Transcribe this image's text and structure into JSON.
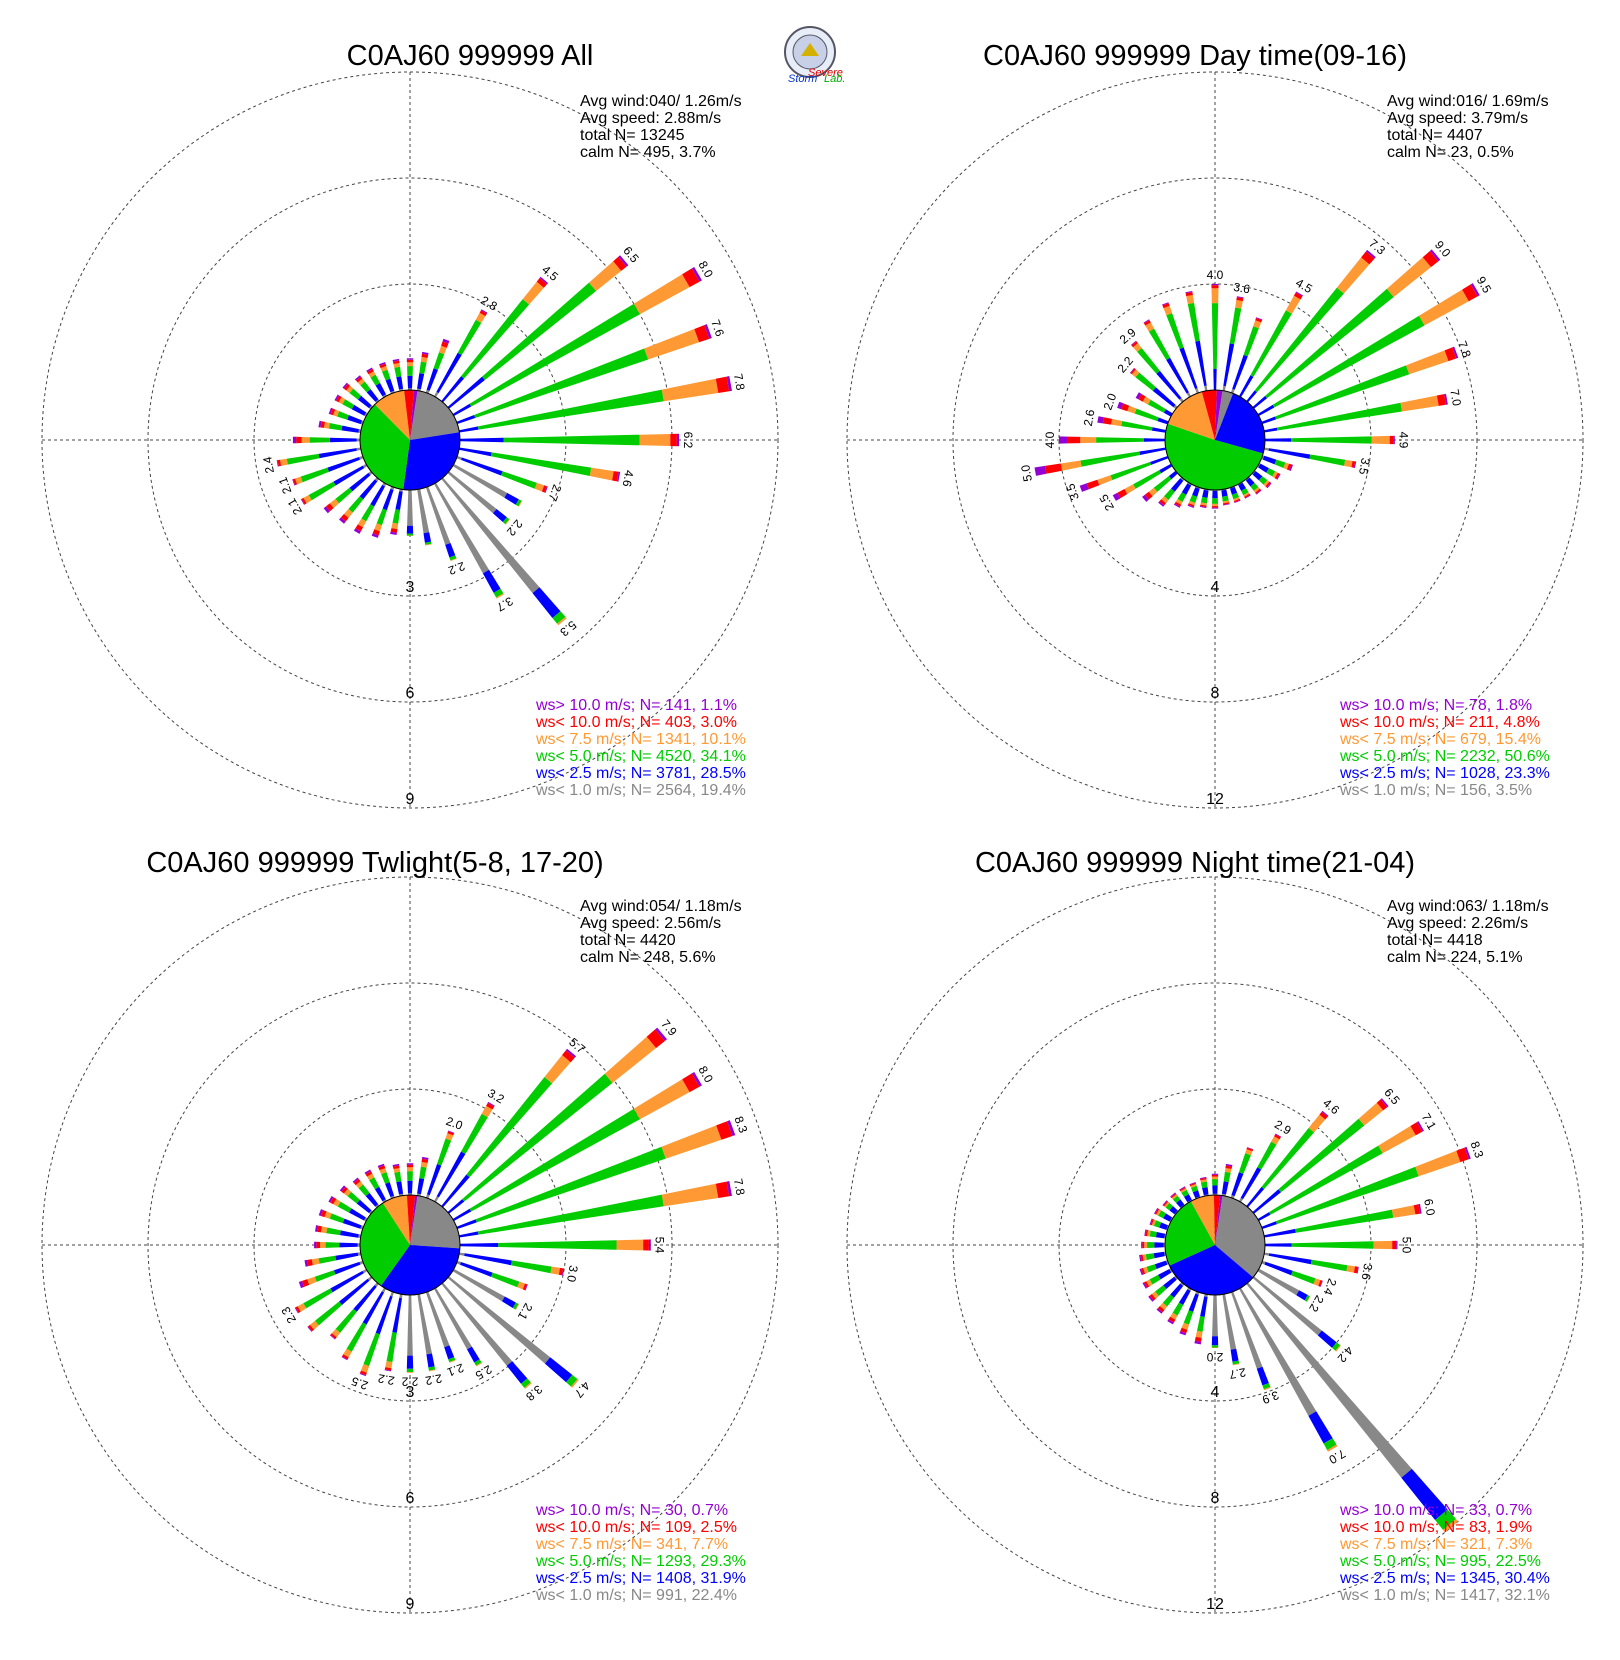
{
  "logo": {
    "text_severe": "Severe",
    "text_storm": "Storm",
    "text_lab": "Lab."
  },
  "colors": {
    "gt10": "#9400d3",
    "lt10": "#ff0000",
    "lt75": "#ff9933",
    "lt5": "#00cc00",
    "lt25": "#0000ff",
    "lt1": "#888888"
  },
  "panels": [
    {
      "title": "C0AJ60 999999 All",
      "stats": [
        "Avg wind:040/ 1.26m/s",
        "Avg speed: 2.88m/s",
        "total N=       13245",
        "calm N=    495,   3.7%"
      ],
      "rings": [
        "3",
        "6",
        "9"
      ],
      "legend": [
        {
          "text": "ws> 10.0 m/s; N=   141,  1.1%",
          "color": "gt10"
        },
        {
          "text": "ws< 10.0 m/s; N=   403,  3.0%",
          "color": "lt10"
        },
        {
          "text": "ws<  7.5 m/s; N=  1341, 10.1%",
          "color": "lt75"
        },
        {
          "text": "ws<  5.0 m/s; N=  4520, 34.1%",
          "color": "lt5"
        },
        {
          "text": "ws<  2.5 m/s; N=  3781, 28.5%",
          "color": "lt25"
        },
        {
          "text": "ws<  1.0 m/s; N=  2564, 19.4%",
          "color": "lt1"
        }
      ],
      "pie": [
        0.194,
        0.285,
        0.341,
        0.101,
        0.03,
        0.011
      ]
    },
    {
      "title": "C0AJ60 999999 Day time(09-16)",
      "stats": [
        "Avg wind:016/ 1.69m/s",
        "Avg speed: 3.79m/s",
        "total N=       4407",
        "calm N=     23,   0.5%"
      ],
      "rings": [
        "4",
        "8",
        "12"
      ],
      "legend": [
        {
          "text": "ws> 10.0 m/s; N=    78,  1.8%",
          "color": "gt10"
        },
        {
          "text": "ws< 10.0 m/s; N=   211,  4.8%",
          "color": "lt10"
        },
        {
          "text": "ws<  7.5 m/s; N=   679, 15.4%",
          "color": "lt75"
        },
        {
          "text": "ws<  5.0 m/s; N=  2232, 50.6%",
          "color": "lt5"
        },
        {
          "text": "ws<  2.5 m/s; N=  1028, 23.3%",
          "color": "lt25"
        },
        {
          "text": "ws<  1.0 m/s; N=   156,  3.5%",
          "color": "lt1"
        }
      ],
      "pie": [
        0.035,
        0.233,
        0.506,
        0.154,
        0.048,
        0.018
      ]
    },
    {
      "title": "C0AJ60 999999 Twlight(5-8, 17-20)",
      "stats": [
        "Avg wind:054/ 1.18m/s",
        "Avg speed: 2.56m/s",
        "total N=       4420",
        "calm N=    248,   5.6%"
      ],
      "rings": [
        "3",
        "6",
        "9"
      ],
      "legend": [
        {
          "text": "ws> 10.0 m/s; N=    30,  0.7%",
          "color": "gt10"
        },
        {
          "text": "ws< 10.0 m/s; N=   109,  2.5%",
          "color": "lt10"
        },
        {
          "text": "ws<  7.5 m/s; N=   341,  7.7%",
          "color": "lt75"
        },
        {
          "text": "ws<  5.0 m/s; N=  1293, 29.3%",
          "color": "lt5"
        },
        {
          "text": "ws<  2.5 m/s; N=  1408, 31.9%",
          "color": "lt25"
        },
        {
          "text": "ws<  1.0 m/s; N=   991, 22.4%",
          "color": "lt1"
        }
      ],
      "pie": [
        0.224,
        0.319,
        0.293,
        0.077,
        0.025,
        0.007
      ]
    },
    {
      "title": "C0AJ60 999999 Night time(21-04)",
      "stats": [
        "Avg wind:063/ 1.18m/s",
        "Avg speed: 2.26m/s",
        "total N=       4418",
        "calm N=    224,   5.1%"
      ],
      "rings": [
        "4",
        "8",
        "12"
      ],
      "legend": [
        {
          "text": "ws> 10.0 m/s; N=    33,  0.7%",
          "color": "gt10"
        },
        {
          "text": "ws< 10.0 m/s; N=    83,  1.9%",
          "color": "lt10"
        },
        {
          "text": "ws<  7.5 m/s; N=   321,  7.3%",
          "color": "lt75"
        },
        {
          "text": "ws<  5.0 m/s; N=   995, 22.5%",
          "color": "lt5"
        },
        {
          "text": "ws<  2.5 m/s; N=  1345, 30.4%",
          "color": "lt25"
        },
        {
          "text": "ws<  1.0 m/s; N=  1417, 32.1%",
          "color": "lt1"
        }
      ],
      "pie": [
        0.321,
        0.304,
        0.225,
        0.073,
        0.019,
        0.007
      ]
    }
  ],
  "chart_data": [
    {
      "type": "windrose",
      "title": "C0AJ60 999999 All",
      "radial_unit": "%",
      "rings": [
        3,
        6,
        9
      ],
      "directions_deg": [
        0,
        10,
        20,
        30,
        40,
        50,
        60,
        70,
        80,
        90,
        100,
        110,
        120,
        130,
        140,
        150,
        160,
        170,
        180,
        190,
        200,
        210,
        220,
        230,
        240,
        250,
        260,
        270,
        280,
        290,
        300,
        310,
        320,
        330,
        340,
        350
      ],
      "totals": [
        0.9,
        1.1,
        1.6,
        2.8,
        4.5,
        6.5,
        8.0,
        7.6,
        7.8,
        6.2,
        4.6,
        2.7,
        2.2,
        2.2,
        5.3,
        3.7,
        2.2,
        1.6,
        1.3,
        1.3,
        1.5,
        1.6,
        1.6,
        1.7,
        2.1,
        2.1,
        2.4,
        1.9,
        1.2,
        1.0,
        1.0,
        1.0,
        0.9,
        0.9,
        0.9,
        0.9
      ],
      "labeled_values": [
        {
          "dir": 30,
          "value": 2.8
        },
        {
          "dir": 40,
          "value": 4.5
        },
        {
          "dir": 50,
          "value": 6.5
        },
        {
          "dir": 60,
          "value": 8.0
        },
        {
          "dir": 70,
          "value": 7.6
        },
        {
          "dir": 80,
          "value": 7.8
        },
        {
          "dir": 90,
          "value": 6.2
        },
        {
          "dir": 100,
          "value": 4.6
        },
        {
          "dir": 110,
          "value": 2.7
        },
        {
          "dir": 130,
          "value": 2.2
        },
        {
          "dir": 140,
          "value": 5.3
        },
        {
          "dir": 150,
          "value": 3.7
        },
        {
          "dir": 160,
          "value": 2.2
        },
        {
          "dir": 240,
          "value": 2.1
        },
        {
          "dir": 250,
          "value": 2.1
        },
        {
          "dir": 260,
          "value": 2.4
        }
      ]
    },
    {
      "type": "windrose",
      "title": "C0AJ60 999999 Day time(09-16)",
      "radial_unit": "%",
      "rings": [
        4,
        8,
        12
      ],
      "directions_deg": [
        0,
        10,
        20,
        30,
        40,
        50,
        60,
        70,
        80,
        90,
        100,
        110,
        120,
        130,
        140,
        150,
        160,
        170,
        180,
        190,
        200,
        210,
        220,
        230,
        240,
        250,
        260,
        270,
        280,
        290,
        300,
        310,
        320,
        330,
        340,
        350
      ],
      "totals": [
        4.0,
        3.6,
        3.0,
        4.5,
        7.3,
        9.0,
        9.5,
        7.8,
        7.0,
        4.9,
        3.5,
        1.2,
        0.9,
        0.8,
        0.7,
        0.6,
        0.6,
        0.6,
        0.7,
        0.7,
        0.8,
        1.0,
        1.3,
        1.6,
        2.5,
        3.5,
        5.0,
        4.0,
        2.6,
        2.0,
        1.5,
        2.2,
        2.9,
        3.3,
        3.6,
        3.8
      ],
      "labeled_values": [
        {
          "dir": 0,
          "value": 4.0
        },
        {
          "dir": 10,
          "value": 3.6
        },
        {
          "dir": 30,
          "value": 4.5
        },
        {
          "dir": 40,
          "value": 7.3
        },
        {
          "dir": 50,
          "value": 9.0
        },
        {
          "dir": 60,
          "value": 9.5
        },
        {
          "dir": 70,
          "value": 7.8
        },
        {
          "dir": 80,
          "value": 7.0
        },
        {
          "dir": 90,
          "value": 4.9
        },
        {
          "dir": 100,
          "value": 3.5
        },
        {
          "dir": 240,
          "value": 2.5
        },
        {
          "dir": 250,
          "value": 3.5
        },
        {
          "dir": 260,
          "value": 5.0
        },
        {
          "dir": 270,
          "value": 4.0
        },
        {
          "dir": 280,
          "value": 2.6
        },
        {
          "dir": 290,
          "value": 2.0
        },
        {
          "dir": 310,
          "value": 2.2
        },
        {
          "dir": 320,
          "value": 2.9
        }
      ]
    },
    {
      "type": "windrose",
      "title": "C0AJ60 999999 Twlight(5-8, 17-20)",
      "radial_unit": "%",
      "rings": [
        3,
        6,
        9
      ],
      "directions_deg": [
        0,
        10,
        20,
        30,
        40,
        50,
        60,
        70,
        80,
        90,
        100,
        110,
        120,
        130,
        140,
        150,
        160,
        170,
        180,
        190,
        200,
        210,
        220,
        230,
        240,
        250,
        260,
        270,
        280,
        290,
        300,
        310,
        320,
        330,
        340,
        350
      ],
      "totals": [
        0.9,
        1.1,
        2.0,
        3.2,
        5.7,
        7.9,
        8.0,
        8.3,
        7.8,
        5.4,
        3.0,
        2.1,
        2.1,
        4.7,
        3.8,
        2.5,
        2.1,
        2.2,
        2.2,
        2.2,
        2.5,
        2.3,
        2.0,
        2.3,
        2.3,
        1.9,
        1.6,
        1.3,
        1.3,
        1.3,
        1.2,
        1.1,
        1.0,
        1.0,
        1.0,
        0.9
      ],
      "labeled_values": [
        {
          "dir": 20,
          "value": 2.0
        },
        {
          "dir": 30,
          "value": 3.2
        },
        {
          "dir": 40,
          "value": 5.7
        },
        {
          "dir": 50,
          "value": 7.9
        },
        {
          "dir": 60,
          "value": 8.0
        },
        {
          "dir": 70,
          "value": 8.3
        },
        {
          "dir": 80,
          "value": 7.8
        },
        {
          "dir": 90,
          "value": 5.4
        },
        {
          "dir": 100,
          "value": 3.0
        },
        {
          "dir": 120,
          "value": 2.1
        },
        {
          "dir": 130,
          "value": 4.7
        },
        {
          "dir": 140,
          "value": 3.8
        },
        {
          "dir": 150,
          "value": 2.5
        },
        {
          "dir": 160,
          "value": 2.1
        },
        {
          "dir": 170,
          "value": 2.2
        },
        {
          "dir": 180,
          "value": 2.2
        },
        {
          "dir": 190,
          "value": 2.2
        },
        {
          "dir": 200,
          "value": 2.5
        },
        {
          "dir": 240,
          "value": 2.3
        }
      ]
    },
    {
      "type": "windrose",
      "title": "C0AJ60 999999 Night time(21-04)",
      "radial_unit": "%",
      "rings": [
        4,
        8,
        12
      ],
      "directions_deg": [
        0,
        10,
        20,
        30,
        40,
        50,
        60,
        70,
        80,
        90,
        100,
        110,
        120,
        130,
        140,
        150,
        160,
        170,
        180,
        190,
        200,
        210,
        220,
        230,
        240,
        250,
        260,
        270,
        280,
        290,
        300,
        310,
        320,
        330,
        340,
        350
      ],
      "totals": [
        0.8,
        1.2,
        2.0,
        2.9,
        4.6,
        6.5,
        7.1,
        8.3,
        6.0,
        5.0,
        3.6,
        2.4,
        2.2,
        4.2,
        12.0,
        7.0,
        3.9,
        2.7,
        2.0,
        1.9,
        1.7,
        1.5,
        1.4,
        1.3,
        1.2,
        1.1,
        1.0,
        0.9,
        0.8,
        0.7,
        0.7,
        0.6,
        0.6,
        0.6,
        0.6,
        0.7
      ],
      "labeled_values": [
        {
          "dir": 30,
          "value": 2.9
        },
        {
          "dir": 40,
          "value": 4.6
        },
        {
          "dir": 50,
          "value": 6.5
        },
        {
          "dir": 60,
          "value": 7.1
        },
        {
          "dir": 70,
          "value": 8.3
        },
        {
          "dir": 80,
          "value": 6.0
        },
        {
          "dir": 90,
          "value": 5.0
        },
        {
          "dir": 100,
          "value": 3.6
        },
        {
          "dir": 110,
          "value": 2.4
        },
        {
          "dir": 120,
          "value": 2.2
        },
        {
          "dir": 130,
          "value": 4.2
        },
        {
          "dir": 150,
          "value": 7.0
        },
        {
          "dir": 160,
          "value": 3.9
        },
        {
          "dir": 170,
          "value": 2.7
        },
        {
          "dir": 180,
          "value": 2.0
        }
      ]
    }
  ]
}
